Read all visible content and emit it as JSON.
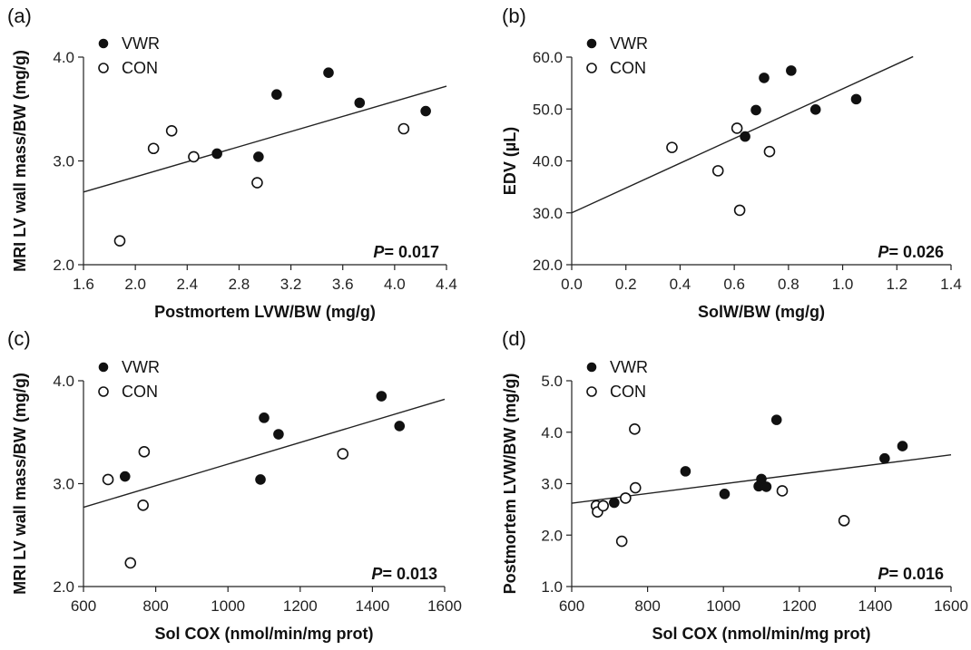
{
  "chart_data": [
    {
      "panel": "(a)",
      "type": "scatter",
      "xlabel": "Postmortem LVW/BW (mg/g)",
      "ylabel": "MRI LV wall mass/BW (mg/g)",
      "xlim": [
        1.6,
        4.4
      ],
      "ylim": [
        2.0,
        4.0
      ],
      "xticks": [
        "1.6",
        "2.0",
        "2.4",
        "2.8",
        "3.2",
        "3.6",
        "4.0",
        "4.4"
      ],
      "yticks": [
        "2.0",
        "3.0",
        "4.0"
      ],
      "legend_position": "top-left",
      "series": [
        {
          "name": "VWR",
          "marker": "filled",
          "x": [
            2.63,
            2.95,
            3.09,
            3.49,
            3.73,
            4.24
          ],
          "y": [
            3.07,
            3.04,
            3.64,
            3.85,
            3.56,
            3.48
          ]
        },
        {
          "name": "CON",
          "marker": "open",
          "x": [
            1.88,
            2.14,
            2.28,
            2.45,
            2.94,
            4.07
          ],
          "y": [
            2.23,
            3.12,
            3.29,
            3.04,
            2.79,
            3.31
          ]
        }
      ],
      "regression": {
        "x": [
          1.6,
          4.4
        ],
        "y": [
          2.7,
          3.72
        ]
      },
      "p_label": "P",
      "p_value": "= 0.017"
    },
    {
      "panel": "(b)",
      "type": "scatter",
      "xlabel": "SolW/BW (mg/g)",
      "ylabel": "EDV (µL)",
      "xlim": [
        0.0,
        1.4
      ],
      "ylim": [
        20.0,
        60.0
      ],
      "xticks": [
        "0.0",
        "0.2",
        "0.4",
        "0.6",
        "0.8",
        "1.0",
        "1.2",
        "1.4"
      ],
      "yticks": [
        "20.0",
        "30.0",
        "40.0",
        "50.0",
        "60.0"
      ],
      "legend_position": "top-left",
      "series": [
        {
          "name": "VWR",
          "marker": "filled",
          "x": [
            0.64,
            0.68,
            0.71,
            0.81,
            0.9,
            1.05
          ],
          "y": [
            44.7,
            49.8,
            56.0,
            57.4,
            49.9,
            51.9
          ]
        },
        {
          "name": "CON",
          "marker": "open",
          "x": [
            0.37,
            0.54,
            0.61,
            0.62,
            0.73
          ],
          "y": [
            42.6,
            38.1,
            46.3,
            30.5,
            41.8
          ]
        }
      ],
      "regression": {
        "x": [
          0.0,
          1.26
        ],
        "y": [
          30.0,
          60.1
        ]
      },
      "p_label": "P",
      "p_value": "= 0.026"
    },
    {
      "panel": "(c)",
      "type": "scatter",
      "xlabel": "Sol COX (nmol/min/mg prot)",
      "ylabel": "MRI LV wall mass/BW (mg/g)",
      "xlim": [
        600,
        1600
      ],
      "ylim": [
        2.0,
        4.0
      ],
      "xticks": [
        "600",
        "800",
        "1000",
        "1200",
        "1400",
        "1600"
      ],
      "yticks": [
        "2.0",
        "3.0",
        "4.0"
      ],
      "legend_position": "top-left",
      "series": [
        {
          "name": "VWR",
          "marker": "filled",
          "x": [
            715,
            1090,
            1100,
            1140,
            1425,
            1475
          ],
          "y": [
            3.07,
            3.04,
            3.64,
            3.48,
            3.85,
            3.56
          ]
        },
        {
          "name": "CON",
          "marker": "open",
          "x": [
            668,
            730,
            765,
            768,
            1318
          ],
          "y": [
            3.04,
            2.23,
            2.79,
            3.31,
            3.29
          ]
        }
      ],
      "regression": {
        "x": [
          600,
          1600
        ],
        "y": [
          2.77,
          3.82
        ]
      },
      "p_label": "P",
      "p_value": "= 0.013"
    },
    {
      "panel": "(d)",
      "type": "scatter",
      "xlabel": "Sol COX (nmol/min/mg prot)",
      "ylabel": "Postmortem LVW/BW (mg/g)",
      "xlim": [
        600,
        1600
      ],
      "ylim": [
        1.0,
        5.0
      ],
      "xticks": [
        "600",
        "800",
        "1000",
        "1200",
        "1400",
        "1600"
      ],
      "yticks": [
        "1.0",
        "2.0",
        "3.0",
        "4.0",
        "5.0"
      ],
      "legend_position": "top-left",
      "series": [
        {
          "name": "VWR",
          "marker": "filled",
          "x": [
            712,
            900,
            1003,
            1093,
            1100,
            1113,
            1140,
            1425,
            1472
          ],
          "y": [
            2.63,
            3.24,
            2.8,
            2.95,
            3.09,
            2.94,
            4.24,
            3.49,
            3.73
          ]
        },
        {
          "name": "CON",
          "marker": "open",
          "x": [
            665,
            668,
            683,
            732,
            742,
            766,
            768,
            1155,
            1318
          ],
          "y": [
            2.57,
            2.45,
            2.57,
            1.88,
            2.72,
            4.06,
            2.92,
            2.86,
            2.28
          ]
        }
      ],
      "regression": {
        "x": [
          600,
          1600
        ],
        "y": [
          2.62,
          3.56
        ]
      },
      "p_label": "P",
      "p_value": "= 0.016"
    }
  ]
}
